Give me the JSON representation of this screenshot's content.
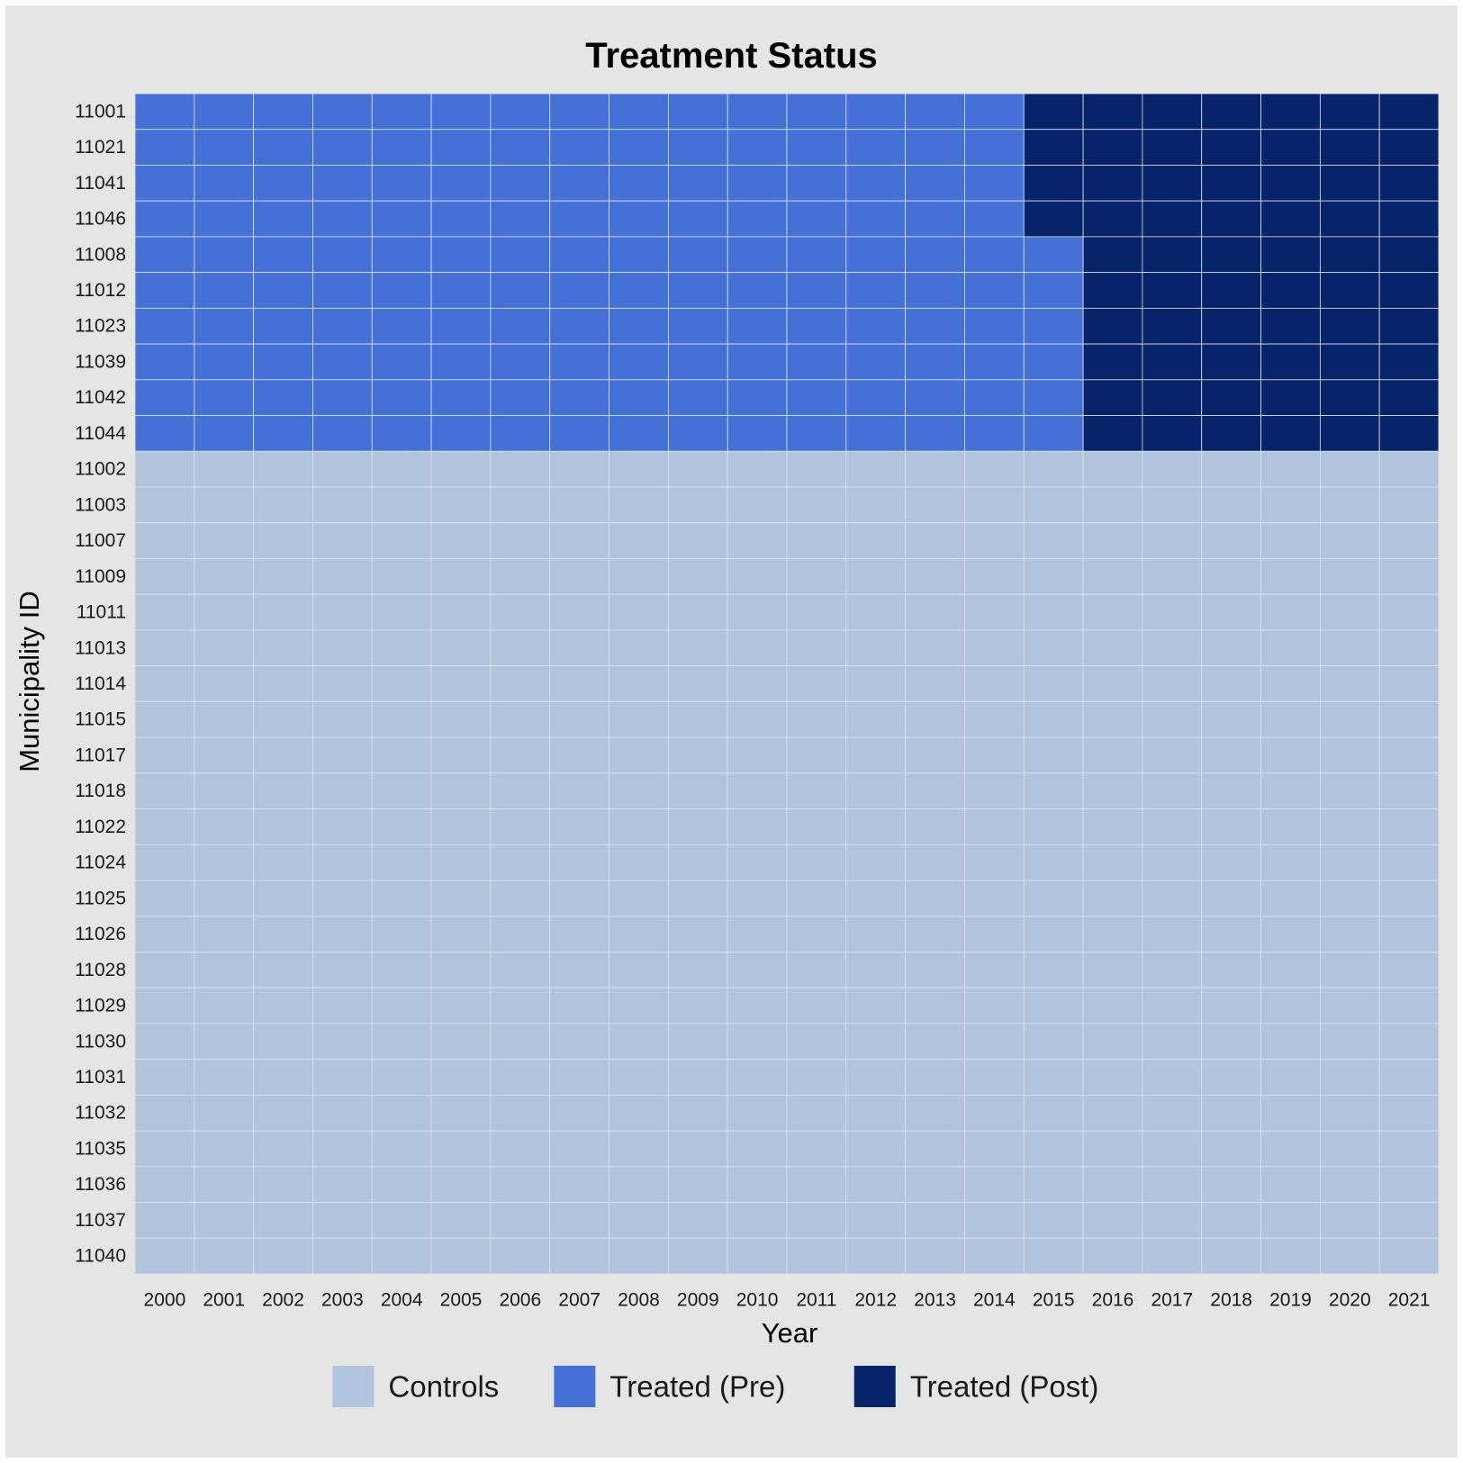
{
  "chart_data": {
    "type": "heatmap",
    "title": "Treatment Status",
    "xlabel": "Year",
    "ylabel": "Municipality ID",
    "x": [
      "2000",
      "2001",
      "2002",
      "2003",
      "2004",
      "2005",
      "2006",
      "2007",
      "2008",
      "2009",
      "2010",
      "2011",
      "2012",
      "2013",
      "2014",
      "2015",
      "2016",
      "2017",
      "2018",
      "2019",
      "2020",
      "2021"
    ],
    "y": [
      "11001",
      "11021",
      "11041",
      "11046",
      "11008",
      "11012",
      "11023",
      "11039",
      "11042",
      "11044",
      "11002",
      "11003",
      "11007",
      "11009",
      "11011",
      "11013",
      "11014",
      "11015",
      "11017",
      "11018",
      "11022",
      "11024",
      "11025",
      "11026",
      "11028",
      "11029",
      "11030",
      "11031",
      "11032",
      "11035",
      "11036",
      "11037",
      "11040"
    ],
    "categories": [
      "Controls",
      "Treated (Pre)",
      "Treated (Post)"
    ],
    "colors": {
      "Controls": "#b0c4de",
      "Treated (Pre)": "#4570d6",
      "Treated (Post)": "#07236a"
    },
    "treated_units": [
      {
        "id": "11001",
        "first_post_year": "2015"
      },
      {
        "id": "11021",
        "first_post_year": "2015"
      },
      {
        "id": "11041",
        "first_post_year": "2015"
      },
      {
        "id": "11046",
        "first_post_year": "2015"
      },
      {
        "id": "11008",
        "first_post_year": "2016"
      },
      {
        "id": "11012",
        "first_post_year": "2016"
      },
      {
        "id": "11023",
        "first_post_year": "2016"
      },
      {
        "id": "11039",
        "first_post_year": "2016"
      },
      {
        "id": "11042",
        "first_post_year": "2016"
      },
      {
        "id": "11044",
        "first_post_year": "2016"
      }
    ],
    "control_status": "Controls",
    "grid": true,
    "legend_position": "bottom"
  }
}
